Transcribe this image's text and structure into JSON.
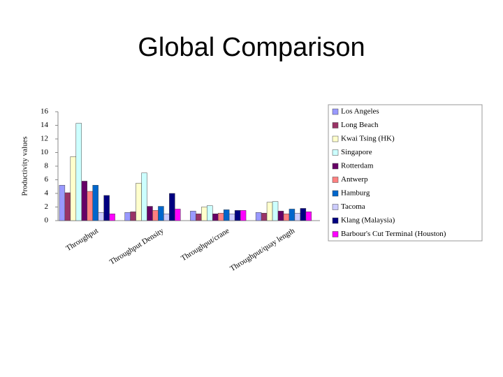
{
  "chart_data": {
    "type": "bar",
    "title": "Global Comparison",
    "y_label": "Productivity values",
    "categories": [
      "Throughput",
      "Throughput Density",
      "Throughput/crane",
      "Throughput/quay length"
    ],
    "ylim": [
      0,
      16
    ],
    "yticks": [
      0,
      2,
      4,
      6,
      8,
      10,
      12,
      14,
      16
    ],
    "grid": false,
    "legend": "right",
    "series": [
      {
        "name": "Los Angeles",
        "color": "#9999ff",
        "values": [
          5.2,
          1.2,
          1.4,
          1.2
        ]
      },
      {
        "name": "Long Beach",
        "color": "#993366",
        "values": [
          4.1,
          1.3,
          1.0,
          1.1
        ]
      },
      {
        "name": "Kwai Tsing (HK)",
        "color": "#ffffcc",
        "values": [
          9.4,
          5.5,
          2.0,
          2.7
        ]
      },
      {
        "name": "Singapore",
        "color": "#ccffff",
        "values": [
          14.3,
          7.0,
          2.2,
          2.8
        ]
      },
      {
        "name": "Rotterdam",
        "color": "#660066",
        "values": [
          5.8,
          2.1,
          1.0,
          1.4
        ]
      },
      {
        "name": "Antwerp",
        "color": "#ff8080",
        "values": [
          4.3,
          1.5,
          1.1,
          1.0
        ]
      },
      {
        "name": "Hamburg",
        "color": "#0066cc",
        "values": [
          5.2,
          2.1,
          1.6,
          1.7
        ]
      },
      {
        "name": "Tacoma",
        "color": "#ccccff",
        "values": [
          1.2,
          1.0,
          1.0,
          1.1
        ]
      },
      {
        "name": "Klang (Malaysia)",
        "color": "#000080",
        "values": [
          3.7,
          4.0,
          1.5,
          1.8
        ]
      },
      {
        "name": "Barbour's Cut Terminal (Houston)",
        "color": "#ff00ff",
        "values": [
          1.0,
          1.7,
          1.5,
          1.3
        ]
      }
    ]
  }
}
